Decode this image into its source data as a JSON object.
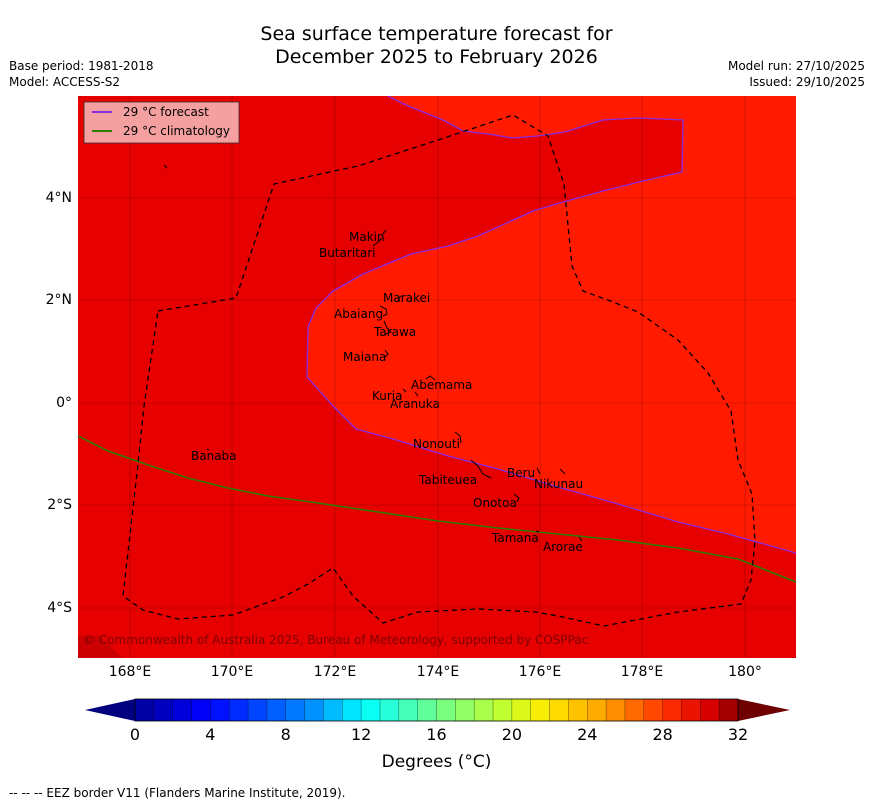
{
  "title": {
    "line1": "Sea surface temperature forecast for",
    "line2": "December 2025 to February 2026"
  },
  "meta": {
    "base_period": "Base period: 1981-2018",
    "model": "Model: ACCESS-S2",
    "model_run": "Model run: 27/10/2025",
    "issued": "Issued: 29/10/2025"
  },
  "legend": {
    "forecast": "29 °C  forecast",
    "climatology": "29 °C  climatology"
  },
  "colors": {
    "sst_28_29": "#e60000",
    "sst_29_30": "#ff1a00",
    "sst_30_31": "#cc0000",
    "forecast_line": "#8a2be2",
    "climatology_line": "#2e7d00",
    "eez": "#000000",
    "legend_bg": "#f4a0a0"
  },
  "axes": {
    "x_ticks": [
      "168°E",
      "170°E",
      "172°E",
      "174°E",
      "176°E",
      "178°E",
      "180°"
    ],
    "y_ticks": [
      "4°N",
      "2°N",
      "0°",
      "2°S",
      "4°S"
    ]
  },
  "islands": {
    "makin": "Makin",
    "butaritari": "Butaritari",
    "marakei": "Marakei",
    "abaiang": "Abaiang",
    "tarawa": "Tarawa",
    "maiana": "Maiana",
    "abemama": "Abemama",
    "kuria": "Kuria",
    "aranuka": "Aranuka",
    "nonouti": "Nonouti",
    "banaba": "Banaba",
    "beru": "Beru",
    "tabiteuea": "Tabiteuea",
    "nikunau": "Nikunau",
    "onotoa": "Onotoa",
    "tamana": "Tamana",
    "arorae": "Arorae"
  },
  "copyright": "© Commonwealth of Australia 2025, Bureau of Meteorology, supported by COSPPac",
  "colorbar": {
    "labels": [
      "0",
      "4",
      "8",
      "12",
      "16",
      "20",
      "24",
      "28",
      "32"
    ],
    "title": "Degrees (°C)",
    "min": 0,
    "max": 32,
    "step": 1
  },
  "footer": "--  --  -- EEZ border V11 (Flanders Marine Institute, 2019)."
}
